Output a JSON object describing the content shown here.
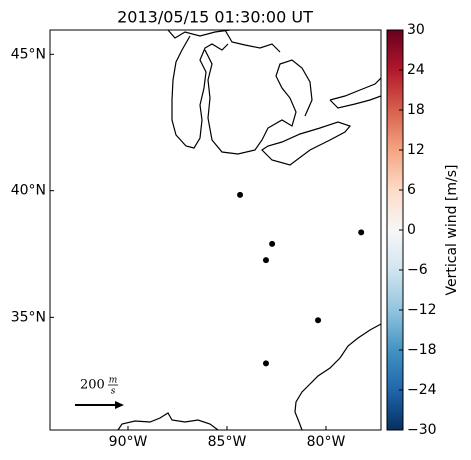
{
  "chart_data": {
    "type": "map",
    "projection": "merc",
    "title": "2013/05/15 01:30:00 UT",
    "xlim": [
      -93.94,
      -77.22
    ],
    "ylim": [
      30.28,
      45.85
    ],
    "xticks": [
      {
        "value": -90,
        "label": "90°W"
      },
      {
        "value": -85,
        "label": "85°W"
      },
      {
        "value": -80,
        "label": "80°W"
      }
    ],
    "yticks": [
      {
        "value": 45,
        "label": "45°N"
      },
      {
        "value": 40,
        "label": "40°N"
      },
      {
        "value": 35,
        "label": "35°N"
      }
    ],
    "points": {
      "lon": [
        -84.34,
        -82.72,
        -83.03,
        -78.22,
        -80.4,
        -83.03
      ],
      "lat": [
        39.84,
        37.94,
        37.3,
        38.39,
        34.88,
        33.1
      ],
      "color": "#000000"
    },
    "quiver_key": {
      "value": 200,
      "unit_num": "m",
      "unit_den": "s"
    },
    "colorbar": {
      "label": "Vertical wind [m/s]",
      "lim": [
        -30,
        30
      ],
      "colors": [
        "#053061",
        "#2166ac",
        "#4393c3",
        "#92c5de",
        "#d1e5f0",
        "#f7f7f7",
        "#fddbc7",
        "#f4a582",
        "#d6604d",
        "#b2182b",
        "#67001f"
      ],
      "ticks": [
        30,
        24,
        18,
        12,
        6,
        0,
        {
          "value": -6,
          "label": "−6"
        },
        {
          "value": -12,
          "label": "−12"
        },
        {
          "value": -18,
          "label": "−18"
        },
        {
          "value": -24,
          "label": "−24"
        },
        {
          "value": -30,
          "label": "−30"
        }
      ]
    }
  }
}
